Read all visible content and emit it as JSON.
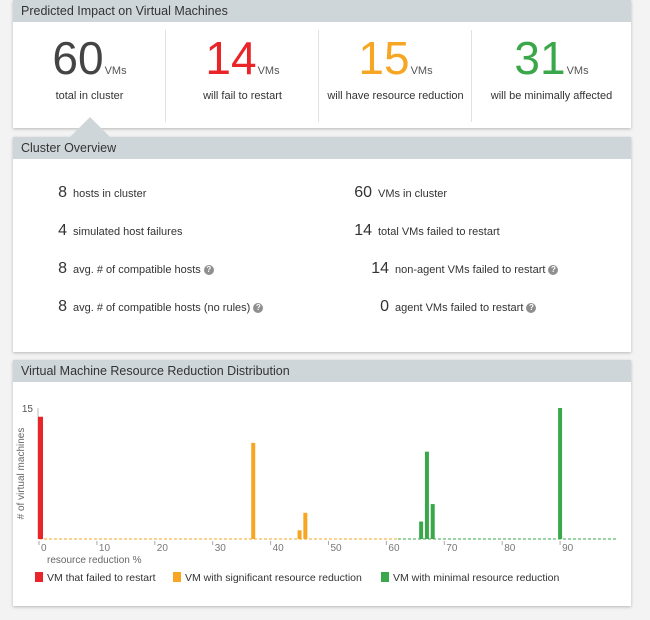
{
  "predicted_impact": {
    "title": "Predicted Impact on Virtual Machines",
    "stats": [
      {
        "value": "60",
        "unit": "VMs",
        "label": "total in cluster",
        "color": "#444444"
      },
      {
        "value": "14",
        "unit": "VMs",
        "label": "will fail to restart",
        "color": "#e8262a"
      },
      {
        "value": "15",
        "unit": "VMs",
        "label": "will have resource reduction",
        "color": "#f6a623"
      },
      {
        "value": "31",
        "unit": "VMs",
        "label": "will be minimally affected",
        "color": "#3aa84a"
      }
    ]
  },
  "cluster_overview": {
    "title": "Cluster Overview",
    "left": [
      {
        "value": "8",
        "label": "hosts in cluster",
        "help": false
      },
      {
        "value": "4",
        "label": "simulated host failures",
        "help": false
      },
      {
        "value": "8",
        "label": "avg. # of compatible hosts",
        "help": true
      },
      {
        "value": "8",
        "label": "avg. # of compatible hosts (no rules)",
        "help": true
      }
    ],
    "right": [
      {
        "value": "60",
        "label": "VMs in cluster",
        "help": false
      },
      {
        "value": "14",
        "label": "total VMs failed to restart",
        "help": false
      },
      {
        "value": "14",
        "label": "non-agent VMs failed to restart",
        "help": true
      },
      {
        "value": "0",
        "label": "agent VMs failed to restart",
        "help": true
      }
    ]
  },
  "distribution": {
    "title": "Virtual Machine Resource Reduction Distribution",
    "legend": [
      {
        "label": "VM that failed to restart",
        "color": "#e8262a"
      },
      {
        "label": "VM with significant resource reduction",
        "color": "#f6a623"
      },
      {
        "label": "VM with minimal resource reduction",
        "color": "#3aa84a"
      }
    ]
  },
  "chart_data": {
    "type": "bar",
    "title": "Virtual Machine Resource Reduction Distribution",
    "xlabel": "resource reduction %",
    "ylabel": "# of virtual machines",
    "xlim": [
      0,
      100
    ],
    "ylim": [
      0,
      15
    ],
    "xticks": [
      "0",
      "10",
      "20",
      "30",
      "40",
      "50",
      "60",
      "70",
      "80",
      "90"
    ],
    "yticks": [
      "15"
    ],
    "series": [
      {
        "name": "VM that failed to restart",
        "color": "#e8262a",
        "points": [
          {
            "x": 0,
            "y": 14
          }
        ]
      },
      {
        "name": "VM with significant resource reduction",
        "color": "#f6a623",
        "points": [
          {
            "x": 37,
            "y": 11
          },
          {
            "x": 45,
            "y": 1
          },
          {
            "x": 46,
            "y": 3
          }
        ]
      },
      {
        "name": "VM with minimal resource reduction",
        "color": "#3aa84a",
        "points": [
          {
            "x": 66,
            "y": 2
          },
          {
            "x": 67,
            "y": 10
          },
          {
            "x": 68,
            "y": 4
          },
          {
            "x": 90,
            "y": 15
          }
        ]
      }
    ]
  }
}
